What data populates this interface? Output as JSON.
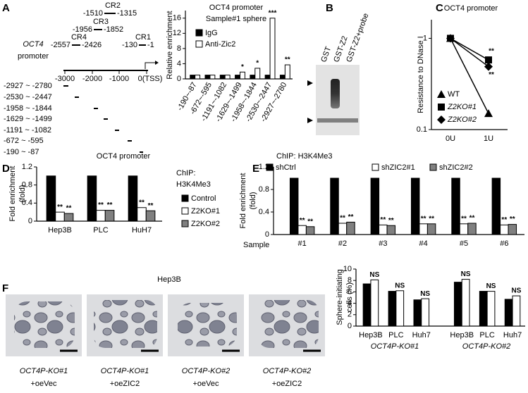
{
  "panel_labels": [
    "A",
    "B",
    "C",
    "D",
    "E",
    "F"
  ],
  "diagram_a": {
    "gene": "OCT4",
    "label": "promoter",
    "regions": [
      {
        "name": "CR2",
        "start": "-1510",
        "end": "-1315"
      },
      {
        "name": "CR3",
        "start": "-1956",
        "end": "-1852"
      },
      {
        "name": "CR4",
        "start": "-2557",
        "end": "-2426"
      },
      {
        "name": "CR1",
        "start": "-130",
        "end": "-1"
      }
    ],
    "axis_labels": [
      "-3000",
      "-2000",
      "-1000",
      "0(TSS)"
    ],
    "amplicons": [
      "-2927 ~ -2780",
      "-2530 ~ -2447",
      "-1958 ~ -1844",
      "-1629 ~ -1499",
      "-1191 ~ -1082",
      "-672 ~ -595",
      "-190  ~ -87"
    ]
  },
  "gel_b": {
    "lanes": [
      "GST",
      "GST-Z2",
      "GST-Z2+probe"
    ]
  },
  "images_f": {
    "cell_line": "Hep3B",
    "captions": [
      {
        "line1": "OCT4P-KO#1",
        "line2": "+oeVec"
      },
      {
        "line1": "OCT4P-KO#1",
        "line2": "+oeZIC2"
      },
      {
        "line1": "OCT4P-KO#2",
        "line2": "+oeVec"
      },
      {
        "line1": "OCT4P-KO#2",
        "line2": "+oeZIC2"
      }
    ]
  },
  "chart_data": [
    {
      "type": "bar",
      "title": "OCT4 promoter",
      "subtitle": "Sample#1 sphere",
      "y_label": [
        "Relative enrichment"
      ],
      "categories": [
        "-190~-87",
        "-672~-595",
        "-1191~-1082",
        "-1629~-1499",
        "-1958~-1844",
        "-2530~-2447",
        "-2927~-2780"
      ],
      "series": [
        {
          "name": "IgG",
          "color": "#000000",
          "values": [
            1,
            1,
            1,
            1,
            1,
            1,
            1
          ]
        },
        {
          "name": "Anti-Zic2",
          "color": "#ffffff",
          "values": [
            1,
            1,
            1,
            1.8,
            2.8,
            16,
            3.7
          ],
          "annotations": [
            null,
            null,
            null,
            "*",
            "*",
            "***",
            "**"
          ]
        }
      ],
      "ylim": [
        0,
        18
      ],
      "yticks": [
        0,
        4,
        8,
        12,
        16
      ]
    },
    {
      "type": "line",
      "title": "OCT4 promoter",
      "y_label": [
        "Resistance to DNase I"
      ],
      "categories": [
        "0U",
        "1U"
      ],
      "log_y": true,
      "series": [
        {
          "name": "WT",
          "color": "#000000",
          "marker": "triangle",
          "values": [
            1,
            0.15
          ]
        },
        {
          "name": "Z2KO#1",
          "color": "#000000",
          "marker": "square",
          "values": [
            1,
            0.58
          ],
          "annotations": [
            null,
            "**"
          ]
        },
        {
          "name": "Z2KO#2",
          "color": "#000000",
          "marker": "diamond",
          "values": [
            1,
            0.49
          ],
          "annotations": [
            null,
            "**"
          ]
        }
      ],
      "ylim": [
        0.1,
        1.6
      ],
      "yticks": [
        0.1,
        1
      ]
    },
    {
      "type": "bar",
      "title": "OCT4 promoter",
      "y_label": [
        "Fold enrichment",
        "(fold)"
      ],
      "legend_title": [
        "ChIP:",
        "H3K4Me3"
      ],
      "categories": [
        "Hep3B",
        "PLC",
        "HuH7"
      ],
      "series": [
        {
          "name": "Control",
          "color": "#000000",
          "values": [
            1,
            1,
            1
          ]
        },
        {
          "name": "Z2KO#1",
          "color": "#ffffff",
          "values": [
            0.2,
            0.24,
            0.3
          ],
          "annotations": [
            "**",
            "**",
            "**"
          ]
        },
        {
          "name": "Z2KO#2",
          "color": "#808080",
          "values": [
            0.17,
            0.24,
            0.23
          ],
          "annotations": [
            "**",
            "**",
            "**"
          ]
        }
      ],
      "ylim": [
        0,
        1.2
      ],
      "yticks": [
        0,
        0.4,
        0.8,
        1.2
      ]
    },
    {
      "type": "bar",
      "note": "ChIP: H3K4Me3",
      "y_label": [
        "Fold enrichment",
        "(fold)"
      ],
      "x_label": "Sample",
      "categories": [
        "#1",
        "#2",
        "#3",
        "#4",
        "#5",
        "#6"
      ],
      "series": [
        {
          "name": "shCtrl",
          "color": "#000000",
          "values": [
            1,
            1,
            1,
            1,
            1,
            1
          ]
        },
        {
          "name": "shZIC2#1",
          "color": "#ffffff",
          "values": [
            0.16,
            0.2,
            0.17,
            0.19,
            0.19,
            0.17
          ],
          "annotations": [
            "**",
            "**",
            "**",
            "**",
            "**",
            "**"
          ]
        },
        {
          "name": "shZIC2#2",
          "color": "#808080",
          "values": [
            0.14,
            0.22,
            0.16,
            0.19,
            0.2,
            0.18
          ],
          "annotations": [
            "**",
            "**",
            "**",
            "**",
            "**",
            "**"
          ]
        }
      ],
      "ylim": [
        0,
        1.2
      ],
      "yticks": [
        0,
        0.4,
        0.8,
        1.2
      ]
    },
    {
      "type": "bar",
      "y_label": [
        "Sphere-initiating",
        "cells (%)"
      ],
      "categories": [
        "Hep3B",
        "PLC",
        "Huh7",
        "Hep3B",
        "PLC",
        "Huh7"
      ],
      "group_labels": [
        "OCT4P-KO#1",
        "OCT4P-KO#2"
      ],
      "series": [
        {
          "color": "#000000",
          "values": [
            7.4,
            6.1,
            4.6,
            7.7,
            6.1,
            4.7
          ]
        },
        {
          "color": "#ffffff",
          "values": [
            8.1,
            6.2,
            4.8,
            8.2,
            6.1,
            5.3
          ],
          "annotations": [
            "NS",
            "NS",
            "NS",
            "NS",
            "NS",
            "NS"
          ]
        }
      ],
      "ylim": [
        0,
        10
      ],
      "yticks": [
        0,
        2,
        4,
        6,
        8,
        10
      ]
    }
  ]
}
